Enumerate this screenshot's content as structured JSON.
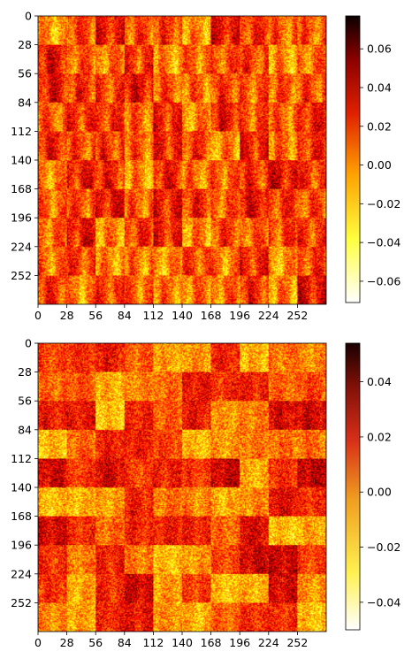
{
  "chart_data": [
    {
      "type": "heatmap",
      "colormap": "hot_r",
      "xlim": [
        0,
        280
      ],
      "ylim": [
        280,
        0
      ],
      "xticks": [
        "0",
        "28",
        "56",
        "84",
        "112",
        "140",
        "168",
        "196",
        "224",
        "252"
      ],
      "yticks": [
        "0",
        "28",
        "56",
        "84",
        "112",
        "140",
        "168",
        "196",
        "224",
        "252"
      ],
      "colorbar": {
        "range": [
          -0.071,
          0.077
        ],
        "ticks": [
          "0.06",
          "0.04",
          "0.02",
          "0.00",
          "−0.02",
          "−0.04",
          "−0.06"
        ]
      }
    },
    {
      "type": "heatmap",
      "colormap": "hot_r",
      "xlim": [
        0,
        280
      ],
      "ylim": [
        280,
        0
      ],
      "xticks": [
        "0",
        "28",
        "56",
        "84",
        "112",
        "140",
        "168",
        "196",
        "224",
        "252"
      ],
      "yticks": [
        "0",
        "28",
        "56",
        "84",
        "112",
        "140",
        "168",
        "196",
        "224",
        "252"
      ],
      "colorbar": {
        "range": [
          -0.05,
          0.054
        ],
        "ticks": [
          "0.04",
          "0.02",
          "0.00",
          "−0.02",
          "−0.04"
        ]
      }
    }
  ]
}
